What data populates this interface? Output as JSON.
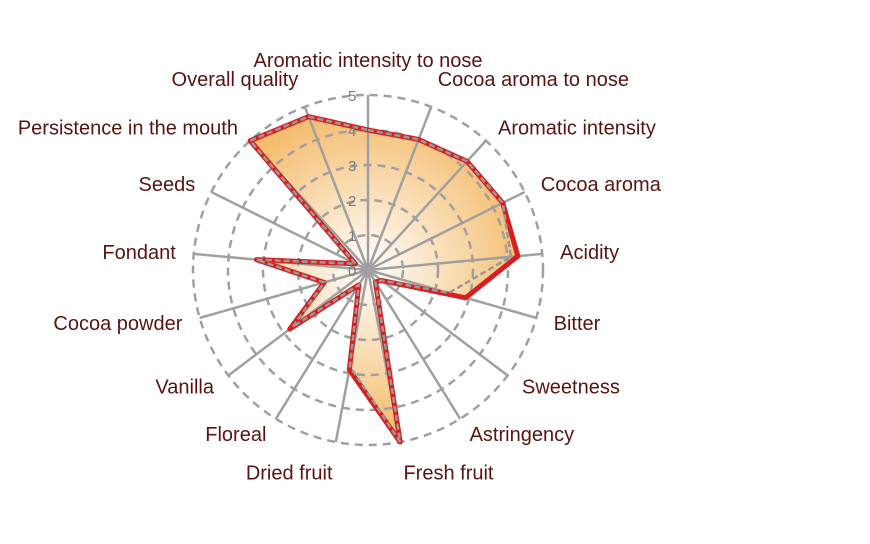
{
  "chart_data": {
    "type": "radar",
    "axes": [
      "Aromatic intensity to nose",
      "Cocoa aroma to nose",
      "Aromatic intensity",
      "Cocoa aroma",
      "Acidity",
      "Bitter",
      "Sweetness",
      "Astringency",
      "Fresh fruit",
      "Dried fruit",
      "Floreal",
      "Vanilla",
      "Cocoa powder",
      "Fondant",
      "Seeds",
      "Persistence in the mouth",
      "Overall quality"
    ],
    "series": [
      {
        "values": [
          4.0,
          4.0,
          4.2,
          4.3,
          4.1,
          2.4,
          0.5,
          0.4,
          5.0,
          2.8,
          0.5,
          2.7,
          1.3,
          3.2,
          0.4,
          5.0,
          4.7
        ]
      },
      {
        "values": [
          4.0,
          4.0,
          4.2,
          4.3,
          4.3,
          2.9,
          0.5,
          0.4,
          5.0,
          2.9,
          0.5,
          2.8,
          1.3,
          3.2,
          0.4,
          5.0,
          4.7
        ]
      }
    ],
    "rlim": [
      0,
      5
    ],
    "ticks": [
      "0",
      "1",
      "2",
      "3",
      "4",
      "5"
    ],
    "grid": true,
    "colors": {
      "fill_inner": "#ffffff",
      "fill_outer": "#f0a030",
      "outline_red": "#d81e1e",
      "outline_gray": "#999999",
      "spokes": "#a0a0a0",
      "grid": "#a0a0a0",
      "labels": "#5a1410",
      "ticks": "#7a7a7a"
    }
  }
}
